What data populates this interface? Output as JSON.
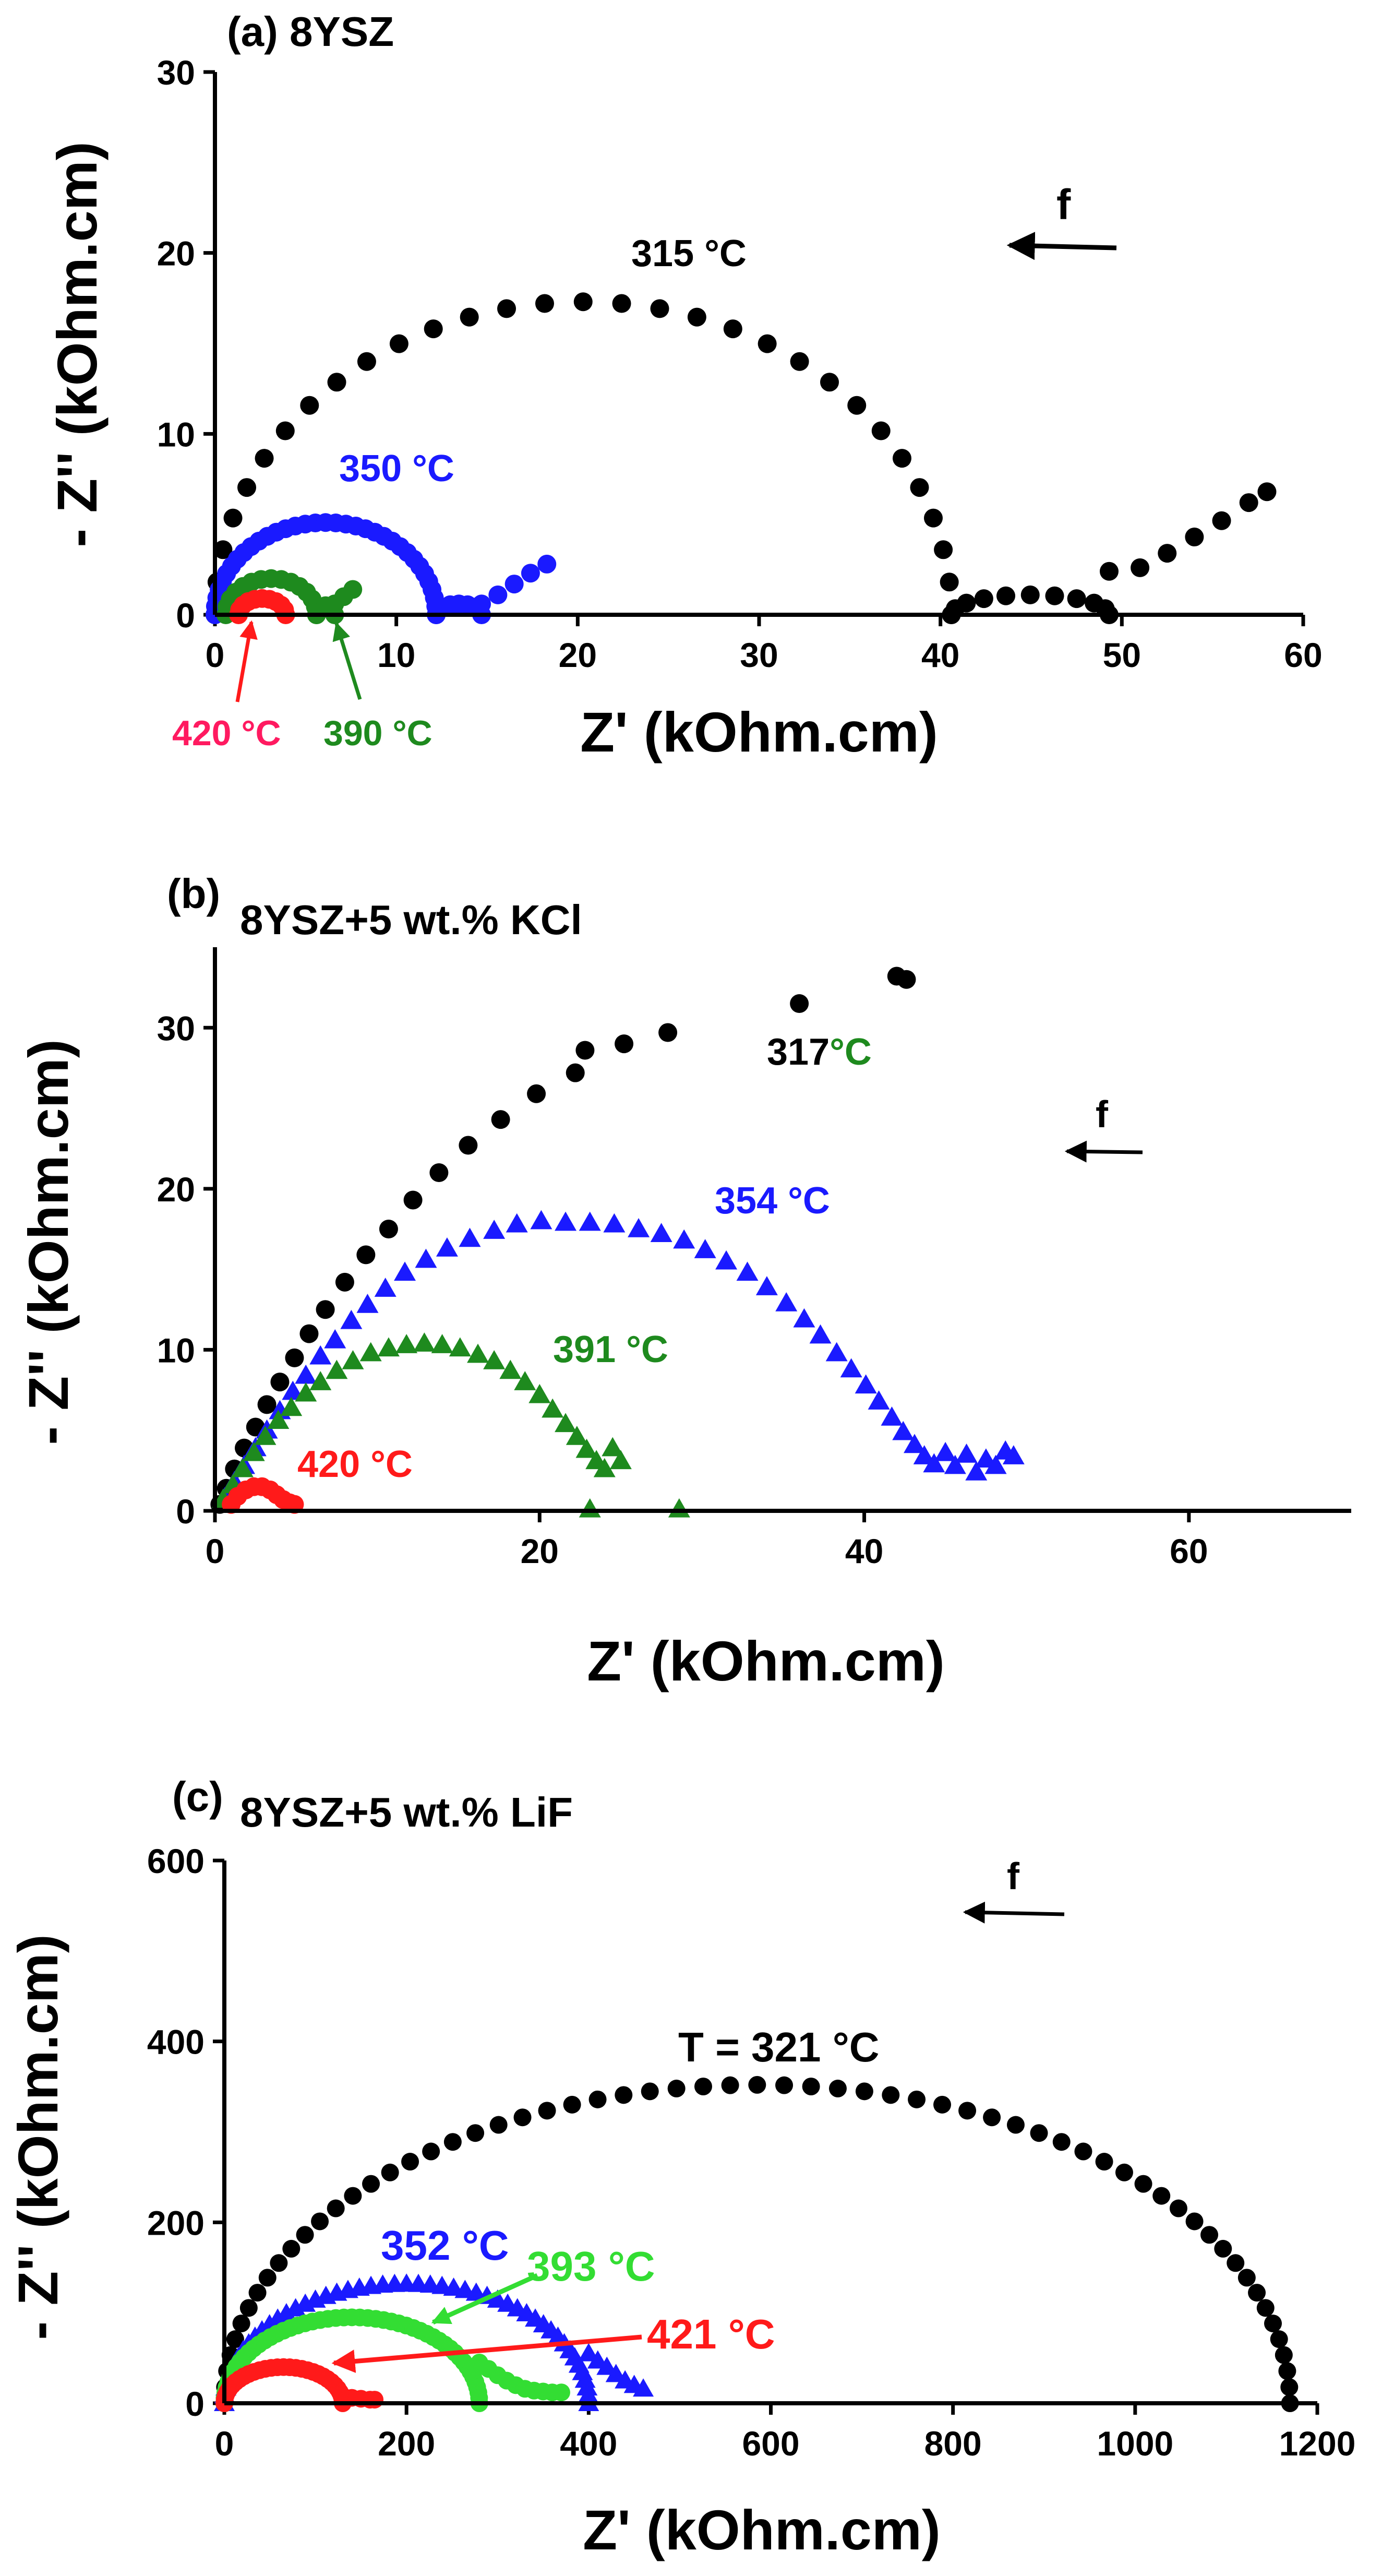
{
  "chart_data": [
    {
      "type": "scatter",
      "panel_label": "(a) 8YSZ",
      "title_suffix": "",
      "xlabel": "Z' (kOhm.cm)",
      "ylabel": "- Z'' (kOhm.cm)",
      "xlim": [
        0,
        60
      ],
      "ylim": [
        0,
        30
      ],
      "xticks": [
        "0",
        "10",
        "20",
        "30",
        "40",
        "50",
        "60"
      ],
      "yticks": [
        "0",
        "10",
        "20",
        "30"
      ],
      "xtick_values": [
        0,
        10,
        20,
        30,
        40,
        50,
        60
      ],
      "ytick_values": [
        0,
        10,
        20,
        30
      ],
      "freq_label": "f",
      "series": [
        {
          "name": "315 °C",
          "color": "#000000",
          "marker": "circle",
          "arcs": [
            [
              0,
              40.6,
              17.3,
              30
            ],
            [
              40.6,
              49.3,
              1.1,
              10
            ]
          ],
          "tail": [
            [
              49.3,
              2.4
            ],
            [
              51,
              2.6
            ],
            [
              52.5,
              3.4
            ],
            [
              54,
              4.3
            ],
            [
              55.5,
              5.2
            ],
            [
              57,
              6.2
            ],
            [
              58,
              6.8
            ]
          ]
        },
        {
          "name": "350 °C",
          "color": "#1a1aff",
          "marker": "circle",
          "arcs": [
            [
              0,
              12.2,
              5.1,
              34
            ],
            [
              12.2,
              14.7,
              0.6,
              8
            ]
          ],
          "tail": [
            [
              14.7,
              0.6
            ],
            [
              15.6,
              1.1
            ],
            [
              16.5,
              1.7
            ],
            [
              17.4,
              2.3
            ],
            [
              18.3,
              2.8
            ]
          ]
        },
        {
          "name": "390 °C",
          "color": "#1e8a1e",
          "marker": "circle",
          "arcs": [
            [
              0.6,
              5.6,
              2.0,
              14
            ],
            [
              5.6,
              6.6,
              0.5,
              4
            ]
          ],
          "tail": [
            [
              6.6,
              0.6
            ],
            [
              7.1,
              1.0
            ],
            [
              7.6,
              1.4
            ]
          ]
        },
        {
          "name": "420 °C",
          "color": "#ff1a1a",
          "marker": "circle",
          "arcs": [
            [
              1.3,
              3.9,
              0.9,
              10
            ]
          ],
          "tail": []
        }
      ],
      "annotations": [
        {
          "text": "315 °C",
          "color": "#000000"
        },
        {
          "text": "350 °C",
          "color": "#1a1aff"
        },
        {
          "text": "420 °C",
          "color": "#ff1a60"
        },
        {
          "text": "390 °C",
          "color": "#1e8a1e"
        }
      ]
    },
    {
      "type": "scatter",
      "panel_label": "(b)",
      "title_suffix": "8YSZ+5 wt.% KCl",
      "xlabel": "Z' (kOhm.cm)",
      "ylabel": "- Z'' (kOhm.cm)",
      "xlim": [
        0,
        70
      ],
      "ylim": [
        0,
        35
      ],
      "xticks": [
        "0",
        "20",
        "40",
        "60"
      ],
      "yticks": [
        "0",
        "10",
        "20",
        "30"
      ],
      "xtick_values": [
        0,
        20,
        40,
        60
      ],
      "ytick_values": [
        0,
        10,
        20,
        30
      ],
      "freq_label": "f",
      "series": [
        {
          "name": "317 °C",
          "color": "#000000",
          "marker": "circle",
          "points": [
            [
              0.3,
              0.4
            ],
            [
              0.7,
              1.4
            ],
            [
              1.2,
              2.6
            ],
            [
              1.8,
              3.9
            ],
            [
              2.5,
              5.2
            ],
            [
              3.2,
              6.6
            ],
            [
              4,
              8
            ],
            [
              4.9,
              9.5
            ],
            [
              5.8,
              11
            ],
            [
              6.8,
              12.5
            ],
            [
              8,
              14.2
            ],
            [
              9.3,
              15.9
            ],
            [
              10.7,
              17.5
            ],
            [
              12.2,
              19.3
            ],
            [
              13.8,
              21
            ],
            [
              15.6,
              22.7
            ],
            [
              17.6,
              24.3
            ],
            [
              19.8,
              25.9
            ],
            [
              22.2,
              27.2
            ],
            [
              22.8,
              28.6
            ],
            [
              25.2,
              29
            ],
            [
              27.9,
              29.7
            ],
            [
              36,
              31.5
            ],
            [
              42,
              33.2
            ],
            [
              42.6,
              33
            ]
          ]
        },
        {
          "name": "354 °C",
          "color": "#1a1aff",
          "marker": "triangle",
          "points": [
            [
              0.6,
              0.8
            ],
            [
              1.2,
              1.8
            ],
            [
              1.8,
              2.8
            ],
            [
              2.5,
              3.9
            ],
            [
              3.2,
              5
            ],
            [
              4,
              6.2
            ],
            [
              4.8,
              7.4
            ],
            [
              5.6,
              8.4
            ],
            [
              6.5,
              9.6
            ],
            [
              7.4,
              10.6
            ],
            [
              8.4,
              11.8
            ],
            [
              9.4,
              12.8
            ],
            [
              10.5,
              13.8
            ],
            [
              11.7,
              14.8
            ],
            [
              13,
              15.6
            ],
            [
              14.3,
              16.3
            ],
            [
              15.7,
              16.9
            ],
            [
              17.2,
              17.4
            ],
            [
              18.6,
              17.8
            ],
            [
              20.1,
              18
            ],
            [
              21.6,
              17.9
            ],
            [
              23.1,
              17.9
            ],
            [
              24.6,
              17.8
            ],
            [
              26.1,
              17.5
            ],
            [
              27.5,
              17.2
            ],
            [
              28.9,
              16.8
            ],
            [
              30.2,
              16.2
            ],
            [
              31.5,
              15.5
            ],
            [
              32.8,
              14.8
            ],
            [
              34,
              13.9
            ],
            [
              35.2,
              12.9
            ],
            [
              36.3,
              11.9
            ],
            [
              37.3,
              10.9
            ],
            [
              38.3,
              9.8
            ],
            [
              39.2,
              8.8
            ],
            [
              40.1,
              7.8
            ],
            [
              40.9,
              6.8
            ],
            [
              41.7,
              5.8
            ],
            [
              42.4,
              4.9
            ],
            [
              43.1,
              4.1
            ],
            [
              43.7,
              3.4
            ],
            [
              44.3,
              2.9
            ],
            [
              45,
              3.6
            ],
            [
              45.6,
              2.8
            ],
            [
              46.3,
              3.5
            ],
            [
              46.9,
              2.4
            ],
            [
              47.5,
              3.2
            ],
            [
              48.1,
              2.8
            ],
            [
              48.7,
              3.7
            ],
            [
              49.2,
              3.4
            ]
          ]
        },
        {
          "name": "391 °C",
          "color": "#1e8a1e",
          "marker": "triangle",
          "points": [
            [
              0.5,
              0.7
            ],
            [
              1.1,
              1.6
            ],
            [
              1.7,
              2.6
            ],
            [
              2.4,
              3.6
            ],
            [
              3.1,
              4.6
            ],
            [
              3.9,
              5.6
            ],
            [
              4.7,
              6.4
            ],
            [
              5.6,
              7.3
            ],
            [
              6.5,
              8
            ],
            [
              7.5,
              8.7
            ],
            [
              8.5,
              9.3
            ],
            [
              9.6,
              9.8
            ],
            [
              10.7,
              10.1
            ],
            [
              11.8,
              10.3
            ],
            [
              12.9,
              10.4
            ],
            [
              14,
              10.3
            ],
            [
              15.1,
              10.1
            ],
            [
              16.2,
              9.7
            ],
            [
              17.2,
              9.3
            ],
            [
              18.2,
              8.7
            ],
            [
              19.1,
              8
            ],
            [
              20,
              7.2
            ],
            [
              20.8,
              6.3
            ],
            [
              21.6,
              5.4
            ],
            [
              22.3,
              4.6
            ],
            [
              22.9,
              3.8
            ],
            [
              23.5,
              3.1
            ],
            [
              24,
              2.6
            ],
            [
              24.5,
              3.9
            ],
            [
              25,
              3.1
            ],
            [
              23.1,
              0.1
            ],
            [
              28.6,
              0.1
            ]
          ]
        },
        {
          "name": "420 °C",
          "color": "#ff1a1a",
          "marker": "circle",
          "points": [
            [
              1.0,
              0.4
            ],
            [
              1.4,
              0.9
            ],
            [
              1.9,
              1.3
            ],
            [
              2.4,
              1.5
            ],
            [
              2.9,
              1.5
            ],
            [
              3.4,
              1.3
            ],
            [
              3.8,
              1.0
            ],
            [
              4.2,
              0.7
            ],
            [
              4.6,
              0.5
            ],
            [
              4.9,
              0.4
            ]
          ]
        }
      ],
      "annotations": [
        {
          "text": "317",
          "color": "#000000"
        },
        {
          "text": "°C",
          "color": "#1e8a1e"
        },
        {
          "text": "354 °C",
          "color": "#1a1aff"
        },
        {
          "text": "391 °C",
          "color": "#1e8a1e"
        },
        {
          "text": "420 °C",
          "color": "#ff1a1a"
        }
      ]
    },
    {
      "type": "scatter",
      "panel_label": "(c)",
      "title_suffix": "8YSZ+5 wt.% LiF",
      "xlabel": "Z' (kOhm.cm)",
      "ylabel": "- Z'' (kOhm.cm)",
      "xlim": [
        0,
        1200
      ],
      "ylim": [
        0,
        600
      ],
      "xticks": [
        "0",
        "200",
        "400",
        "600",
        "800",
        "1000",
        "1200"
      ],
      "yticks": [
        "0",
        "200",
        "400",
        "600"
      ],
      "xtick_values": [
        0,
        200,
        400,
        600,
        800,
        1000,
        1200
      ],
      "ytick_values": [
        0,
        200,
        400,
        600
      ],
      "freq_label": "f",
      "series": [
        {
          "name": "T = 321 °C",
          "color": "#000000",
          "marker": "circle",
          "arcs": [
            [
              0,
              1170,
              352,
              62
            ]
          ],
          "tail": []
        },
        {
          "name": "352 °C",
          "color": "#1a1aff",
          "marker": "triangle",
          "arcs": [
            [
              0,
              400,
              132,
              48
            ]
          ],
          "tail": [
            [
              400,
              55
            ],
            [
              410,
              47
            ],
            [
              420,
              40
            ],
            [
              430,
              32
            ],
            [
              440,
              25
            ],
            [
              450,
              20
            ],
            [
              460,
              16
            ]
          ]
        },
        {
          "name": "393 °C",
          "color": "#33dd33",
          "marker": "circle",
          "arcs": [
            [
              0,
              280,
              95,
              50
            ]
          ],
          "tail": [
            [
              280,
              45
            ],
            [
              290,
              38
            ],
            [
              300,
              31
            ],
            [
              310,
              25
            ],
            [
              320,
              20
            ],
            [
              330,
              16
            ],
            [
              340,
              14
            ],
            [
              350,
              13
            ],
            [
              360,
              12
            ],
            [
              370,
              12
            ]
          ]
        },
        {
          "name": "421 °C",
          "color": "#ff1a1a",
          "marker": "circle",
          "arcs": [
            [
              0,
              130,
              40,
              30
            ]
          ],
          "tail": [
            [
              130,
              8
            ],
            [
              140,
              6
            ],
            [
              150,
              5
            ],
            [
              160,
              4
            ],
            [
              165,
              4
            ]
          ]
        }
      ],
      "annotations": [
        {
          "text": "T = 321 °C",
          "color": "#000000"
        },
        {
          "text": "352 °C",
          "color": "#1a1aff"
        },
        {
          "text": "393 °C",
          "color": "#33dd33"
        },
        {
          "text": "421 °C",
          "color": "#ff1a1a"
        }
      ]
    }
  ]
}
